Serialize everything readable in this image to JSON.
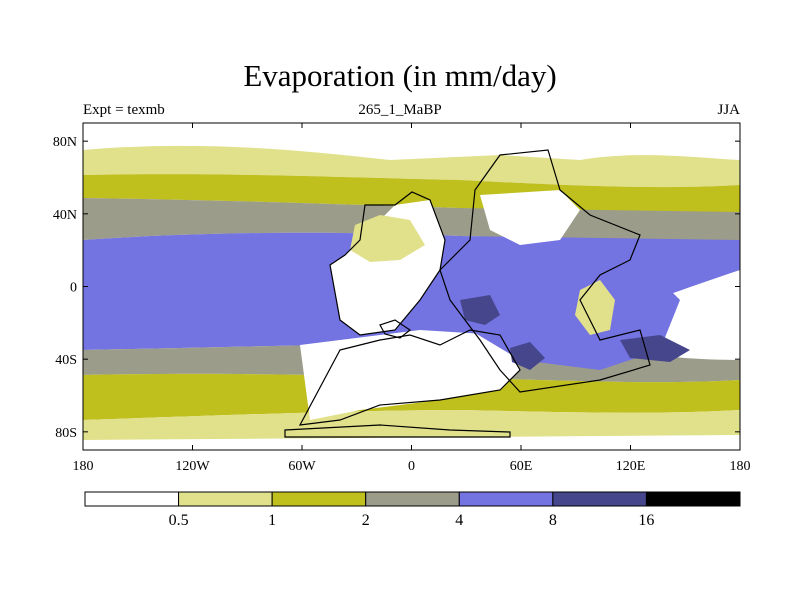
{
  "title": "Evaporation (in mm/day)",
  "subtitle": {
    "left": "Expt = texmb",
    "center": "265_1_MaBP",
    "right": "JJA"
  },
  "axes": {
    "y_ticks": [
      {
        "label": "80N",
        "lat": 80
      },
      {
        "label": "40N",
        "lat": 40
      },
      {
        "label": "0",
        "lat": 0
      },
      {
        "label": "40S",
        "lat": -40
      },
      {
        "label": "80S",
        "lat": -80
      }
    ],
    "x_ticks": [
      {
        "label": "180",
        "lon": -180
      },
      {
        "label": "120W",
        "lon": -120
      },
      {
        "label": "60W",
        "lon": -60
      },
      {
        "label": "0",
        "lon": 0
      },
      {
        "label": "60E",
        "lon": 60
      },
      {
        "label": "120E",
        "lon": 120
      },
      {
        "label": "180",
        "lon": 180
      }
    ],
    "lon_range": [
      -180,
      180
    ],
    "lat_range": [
      -90,
      90
    ]
  },
  "colorbar": {
    "colors": [
      "#ffffff",
      "#e1e18c",
      "#bfbf1e",
      "#9c9c8a",
      "#7373e1",
      "#46468c",
      "#000000"
    ],
    "labels": [
      "0.5",
      "1",
      "2",
      "4",
      "8",
      "16"
    ]
  }
}
